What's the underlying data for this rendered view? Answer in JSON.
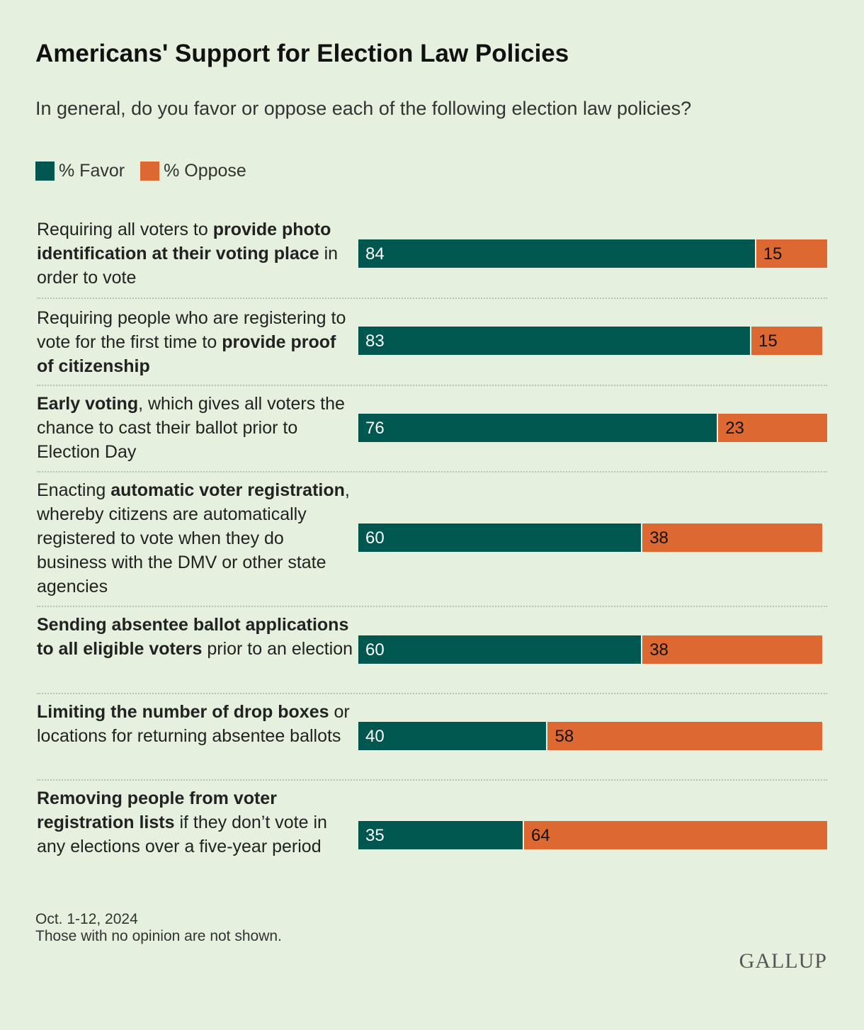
{
  "title": "Americans' Support for Election Law Policies",
  "subtitle": "In general, do you favor or oppose each of the following election law policies?",
  "colors": {
    "favor": "#00574f",
    "oppose": "#dd6832",
    "background": "#e5f0df"
  },
  "chart_data": {
    "type": "bar",
    "orientation": "horizontal-stacked",
    "series": [
      {
        "name": "% Favor",
        "values": [
          84,
          83,
          76,
          60,
          60,
          40,
          35
        ]
      },
      {
        "name": "% Oppose",
        "values": [
          15,
          15,
          23,
          38,
          38,
          58,
          64
        ]
      }
    ],
    "categories": [
      [
        {
          "t": "Requiring all voters to ",
          "b": false
        },
        {
          "t": "provide photo identification at their voting place",
          "b": true
        },
        {
          "t": " in order to vote",
          "b": false
        }
      ],
      [
        {
          "t": "Requiring people who are registering to vote for the first time to ",
          "b": false
        },
        {
          "t": "provide proof of citizenship",
          "b": true
        }
      ],
      [
        {
          "t": "Early voting",
          "b": true
        },
        {
          "t": ", which gives all voters the chance to cast their ballot prior to Election Day",
          "b": false
        }
      ],
      [
        {
          "t": "Enacting ",
          "b": false
        },
        {
          "t": "automatic voter registration",
          "b": true
        },
        {
          "t": ", whereby citizens are automatically registered to vote when they do business with the DMV or other state agencies",
          "b": false
        }
      ],
      [
        {
          "t": "Sending absentee ballot applications to all eligible voters",
          "b": true
        },
        {
          "t": " prior to an election",
          "b": false
        }
      ],
      [
        {
          "t": "Limiting the number of drop boxes",
          "b": true
        },
        {
          "t": " or locations for returning absentee ballots",
          "b": false
        }
      ],
      [
        {
          "t": "Removing people from voter registration lists",
          "b": true
        },
        {
          "t": " if they don’t vote in any elections over a five-year period",
          "b": false
        }
      ]
    ],
    "legend": "top-left",
    "xlim": [
      0,
      100
    ]
  },
  "notes": {
    "date": "Oct. 1-12, 2024",
    "footnote": "Those with no opinion are not shown."
  },
  "logo": "GALLUP"
}
